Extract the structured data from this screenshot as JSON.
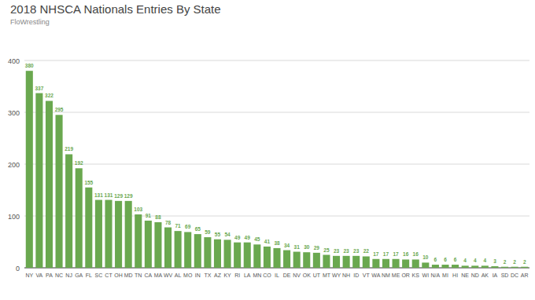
{
  "chart_data": {
    "type": "bar",
    "title": "2018 NHSCA Nationals Entries By State",
    "subtitle": "FloWrestling",
    "categories": [
      "NY",
      "VA",
      "PA",
      "NC",
      "NJ",
      "GA",
      "FL",
      "SC",
      "CT",
      "OH",
      "MD",
      "TN",
      "CA",
      "MA",
      "WV",
      "AL",
      "MO",
      "IN",
      "TX",
      "AZ",
      "KY",
      "RI",
      "LA",
      "MN",
      "CO",
      "IL",
      "DE",
      "NV",
      "OK",
      "UT",
      "MT",
      "WY",
      "NH",
      "ID",
      "VT",
      "WA",
      "NM",
      "ME",
      "OR",
      "KS",
      "WI",
      "N/A",
      "MI",
      "HI",
      "NE",
      "ND",
      "AK",
      "IA",
      "SD",
      "DC",
      "AR"
    ],
    "values": [
      380,
      337,
      322,
      295,
      219,
      192,
      155,
      131,
      131,
      129,
      129,
      103,
      91,
      88,
      78,
      71,
      69,
      65,
      59,
      55,
      54,
      49,
      49,
      45,
      41,
      38,
      34,
      31,
      30,
      29,
      25,
      23,
      23,
      23,
      22,
      17,
      17,
      17,
      16,
      16,
      10,
      6,
      6,
      6,
      4,
      4,
      4,
      3,
      2,
      2,
      2
    ],
    "color": "#6aa84f",
    "ylim": [
      0,
      400
    ],
    "yticks": [
      0,
      100,
      200,
      300,
      400
    ],
    "grid": true,
    "data_labels": true
  }
}
